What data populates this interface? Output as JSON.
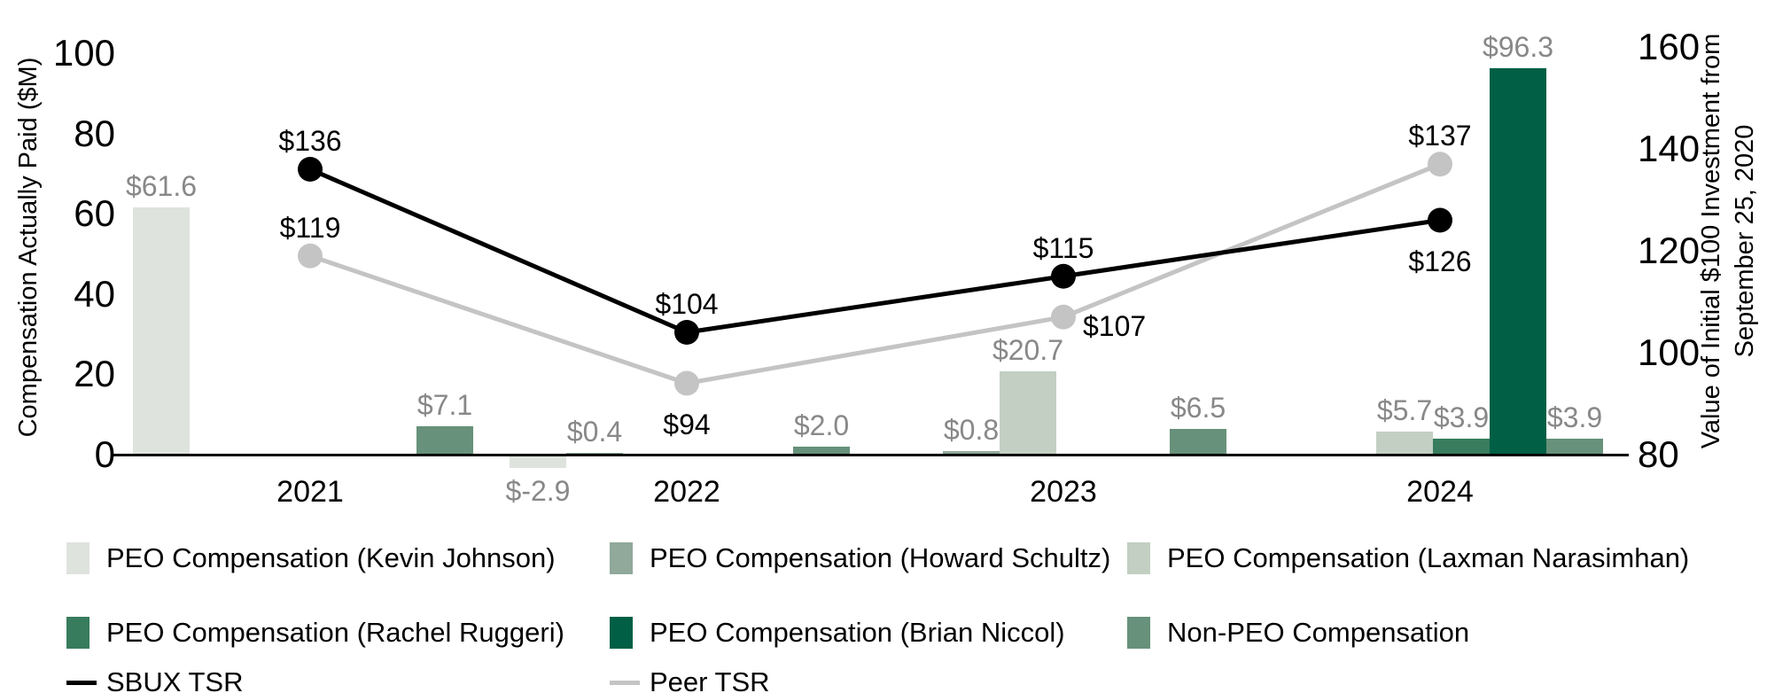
{
  "chart_data": {
    "type": "combo-bar-line",
    "left_axis": {
      "label": "Compensation Actually Paid ($M)",
      "ticks": [
        "100",
        "80",
        "60",
        "40",
        "20",
        "0"
      ],
      "tick_values": [
        100,
        80,
        60,
        40,
        20,
        0
      ],
      "range": [
        0,
        100
      ]
    },
    "right_axis": {
      "label_line1": "Value of Initial $100 Investment from",
      "label_line2": "September 25, 2020",
      "ticks": [
        "160",
        "140",
        "120",
        "100",
        "80"
      ],
      "tick_values": [
        160,
        140,
        120,
        100,
        80
      ],
      "range": [
        80,
        160
      ]
    },
    "years": [
      "2021",
      "2022",
      "2023",
      "2024"
    ],
    "colors": {
      "kevin_johnson": "#DEE3DD",
      "howard_schultz": "#90A99A",
      "laxman_narasimhan": "#C2CFC2",
      "rachel_ruggeri": "#377C5D",
      "brian_niccol": "#005F45",
      "non_peo": "#67917A",
      "sbux_tsr": "#000000",
      "peer_tsr": "#C4C4C4",
      "bar_label_text": "#888888",
      "axis_text": "#000000"
    },
    "bar_series": [
      {
        "key": "kevin_johnson",
        "name": "PEO Compensation (Kevin Johnson)",
        "slot": 0,
        "values": {
          "2021": 61.6,
          "2022": -2.9
        },
        "labels": {
          "2021": "$61.6",
          "2022": "$-2.9"
        }
      },
      {
        "key": "howard_schultz",
        "name": "PEO Compensation (Howard Schultz)",
        "slot": 1,
        "values": {
          "2022": 0.4,
          "2023": 0.8
        },
        "labels": {
          "2022": "$0.4",
          "2023": "$0.8"
        }
      },
      {
        "key": "laxman_narasimhan",
        "name": "PEO Compensation (Laxman Narasimhan)",
        "slot": 2,
        "values": {
          "2023": 20.7,
          "2024": 5.7
        },
        "labels": {
          "2023": "$20.7",
          "2024": "$5.7"
        }
      },
      {
        "key": "rachel_ruggeri",
        "name": "PEO Compensation (Rachel Ruggeri)",
        "slot": 3,
        "values": {
          "2024": 3.9
        },
        "labels": {
          "2024": "$3.9"
        }
      },
      {
        "key": "brian_niccol",
        "name": "PEO Compensation (Brian Niccol)",
        "slot": 4,
        "values": {
          "2024": 96.3
        },
        "labels": {
          "2024": "$96.3"
        }
      },
      {
        "key": "non_peo",
        "name": "Non-PEO Compensation",
        "slot": 5,
        "values": {
          "2021": 7.1,
          "2022": 2.0,
          "2023": 6.5,
          "2024": 3.9
        },
        "labels": {
          "2021": "$7.1",
          "2022": "$2.0",
          "2023": "$6.5",
          "2024": "$3.9"
        }
      }
    ],
    "line_series": [
      {
        "key": "sbux_tsr",
        "name": "SBUX TSR",
        "values": [
          136,
          104,
          115,
          126
        ],
        "labels": [
          "$136",
          "$104",
          "$115",
          "$126"
        ],
        "label_sides": [
          "above",
          "above",
          "above",
          "below"
        ]
      },
      {
        "key": "peer_tsr",
        "name": "Peer TSR",
        "values": [
          119,
          94,
          107,
          137
        ],
        "labels": [
          "$119",
          "$94",
          "$107",
          "$137"
        ],
        "label_sides": [
          "above",
          "below",
          "right",
          "above"
        ]
      }
    ],
    "legend": {
      "rows": [
        {
          "items": [
            {
              "type": "swatch",
              "series": "kevin_johnson",
              "label": "PEO Compensation (Kevin Johnson)"
            },
            {
              "type": "swatch",
              "series": "howard_schultz",
              "label": "PEO Compensation (Howard Schultz)"
            },
            {
              "type": "swatch",
              "series": "laxman_narasimhan",
              "label": "PEO Compensation (Laxman Narasimhan)"
            }
          ]
        },
        {
          "items": [
            {
              "type": "swatch",
              "series": "rachel_ruggeri",
              "label": "PEO Compensation (Rachel Ruggeri)"
            },
            {
              "type": "swatch",
              "series": "brian_niccol",
              "label": "PEO Compensation (Brian Niccol)"
            },
            {
              "type": "swatch",
              "series": "non_peo",
              "label": "Non-PEO Compensation"
            }
          ]
        },
        {
          "items": [
            {
              "type": "line",
              "series": "sbux_tsr",
              "label": "SBUX TSR"
            },
            {
              "type": "line",
              "series": "peer_tsr",
              "label": "Peer TSR"
            }
          ]
        }
      ]
    }
  }
}
